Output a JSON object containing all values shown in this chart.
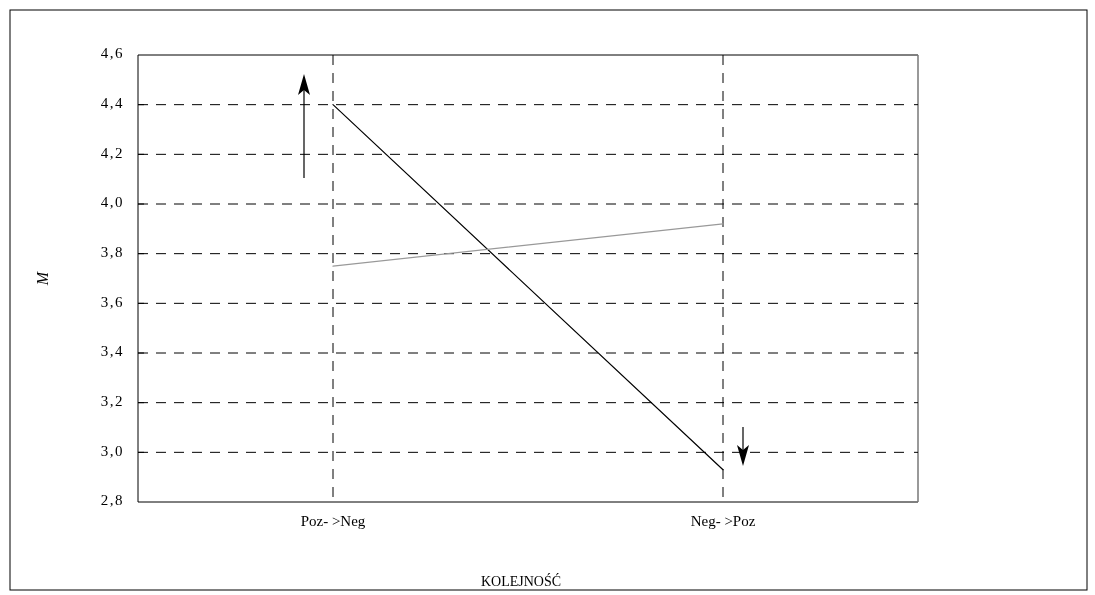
{
  "chart_data": {
    "type": "line",
    "xlabel": "KOLEJNOŚĆ",
    "ylabel": "M",
    "categories": [
      "Poz- >Neg",
      "Neg- >Poz"
    ],
    "series": [
      {
        "color": "#000000",
        "values": [
          4.4,
          2.93
        ]
      },
      {
        "color": "#999999",
        "values": [
          3.75,
          3.92
        ]
      }
    ],
    "ylim": [
      2.8,
      4.6
    ],
    "yticks": [
      {
        "value": 2.8,
        "label": "2,8"
      },
      {
        "value": 3.0,
        "label": "3,0"
      },
      {
        "value": 3.2,
        "label": "3,2"
      },
      {
        "value": 3.4,
        "label": "3,4"
      },
      {
        "value": 3.6,
        "label": "3,6"
      },
      {
        "value": 3.8,
        "label": "3,8"
      },
      {
        "value": 4.0,
        "label": "4,0"
      },
      {
        "value": 4.2,
        "label": "4,2"
      },
      {
        "value": 4.4,
        "label": "4,4"
      },
      {
        "value": 4.6,
        "label": "4,6"
      }
    ],
    "grid": true,
    "marker": "none",
    "line_style": "solid"
  }
}
